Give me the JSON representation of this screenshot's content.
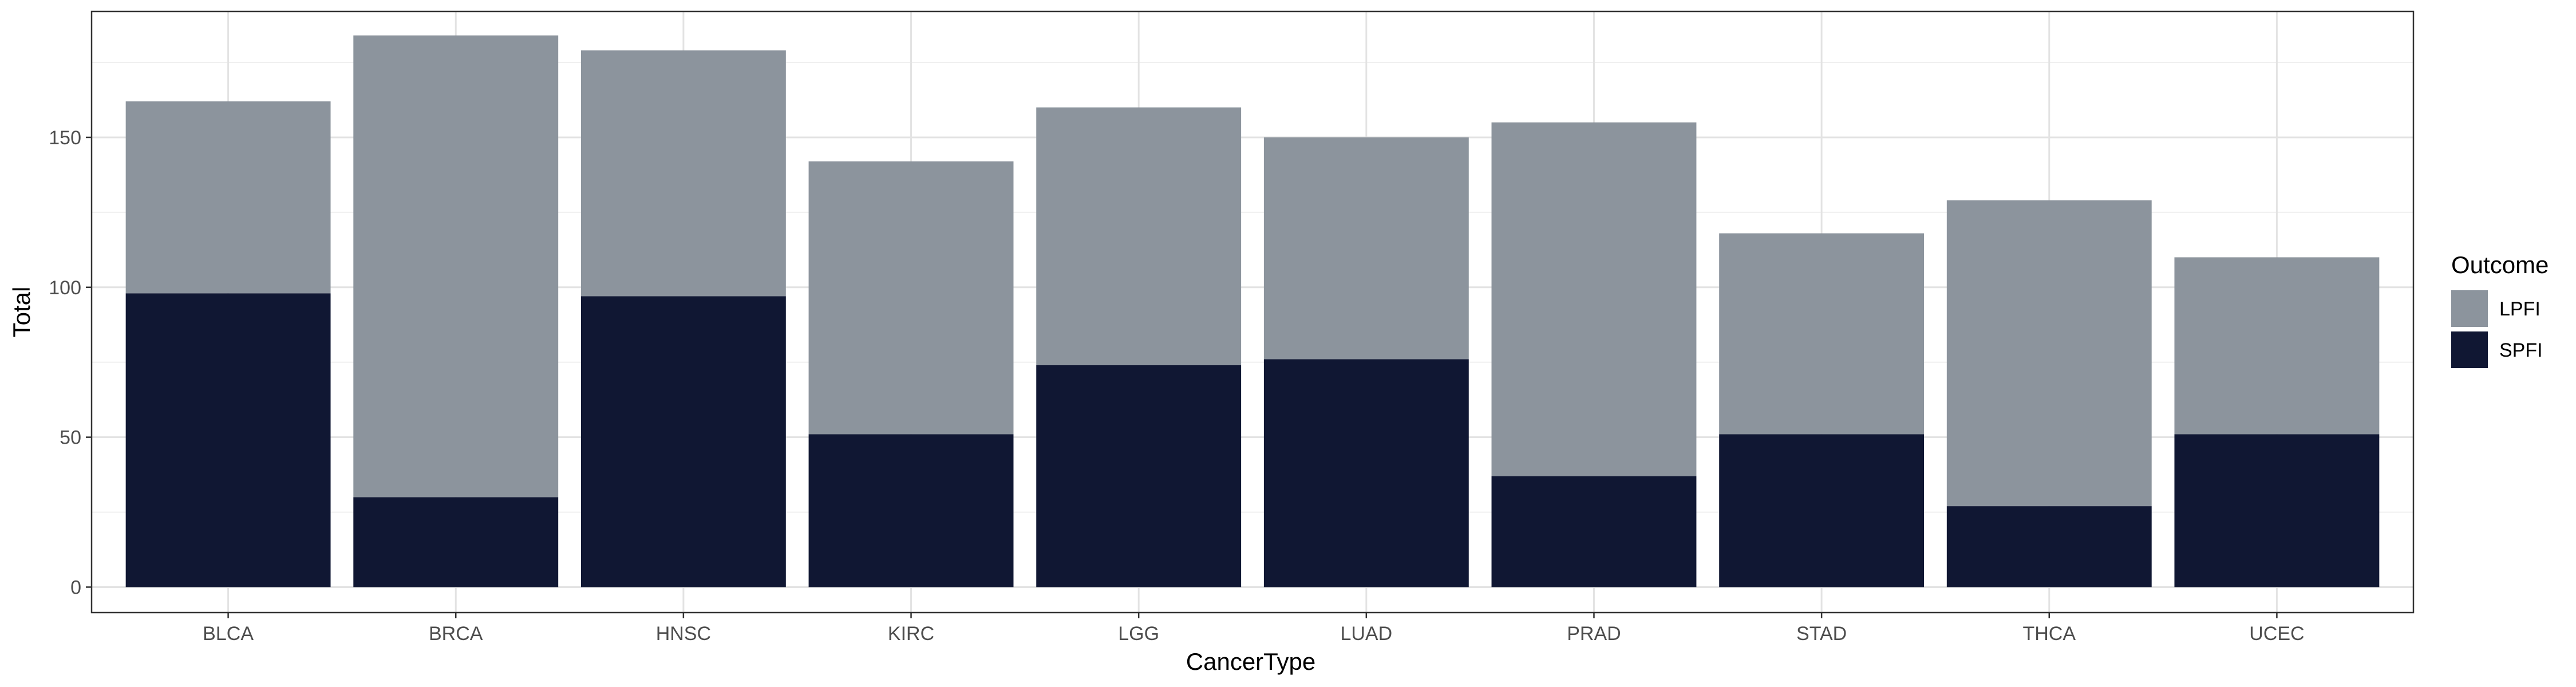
{
  "chart_data": {
    "type": "bar",
    "stacked": true,
    "title": "",
    "xlabel": "CancerType",
    "ylabel": "Total",
    "categories": [
      "BLCA",
      "BRCA",
      "HNSC",
      "KIRC",
      "LGG",
      "LUAD",
      "PRAD",
      "STAD",
      "THCA",
      "UCEC"
    ],
    "series": [
      {
        "name": "SPFI",
        "color": "#101733",
        "values": [
          98,
          30,
          97,
          51,
          74,
          76,
          37,
          51,
          27,
          51
        ]
      },
      {
        "name": "LPFI",
        "color": "#8c949d",
        "values": [
          64,
          154,
          82,
          91,
          86,
          74,
          118,
          67,
          102,
          59
        ]
      }
    ],
    "ylim": [
      -8.5,
      192
    ],
    "yticks": [
      0,
      50,
      100,
      150
    ],
    "grid": true,
    "legend": {
      "title": "Outcome",
      "position": "right",
      "entries": [
        "LPFI",
        "SPFI"
      ]
    }
  }
}
